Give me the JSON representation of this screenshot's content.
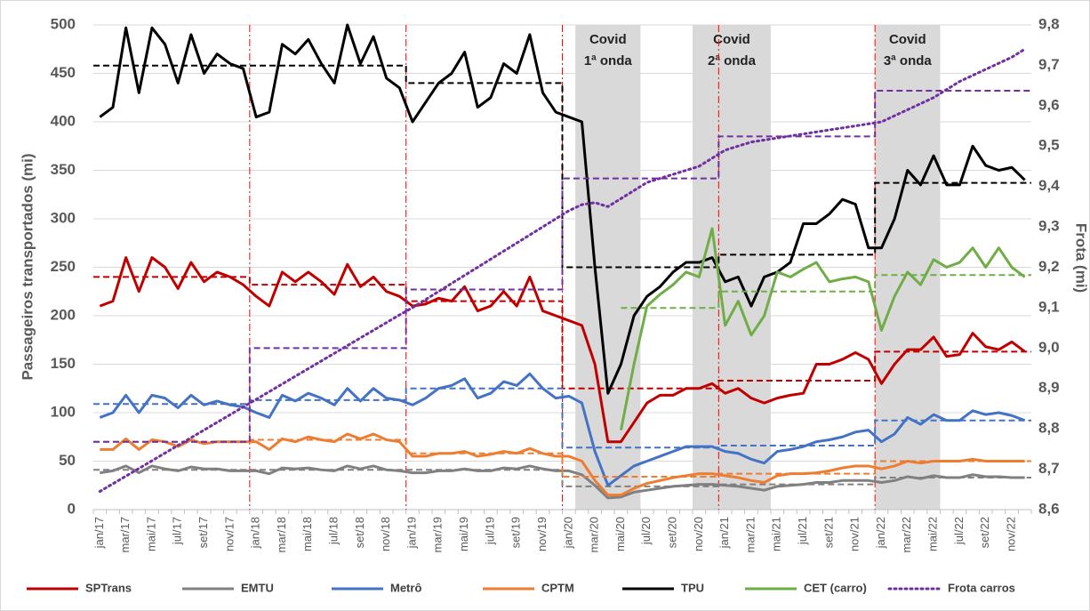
{
  "chart_data": {
    "type": "line",
    "categories": [
      "jan/17",
      null,
      "mar/17",
      null,
      "mai/17",
      null,
      "jul/17",
      null,
      "set/17",
      null,
      "nov/17",
      null,
      "jan/18",
      null,
      "mar/18",
      null,
      "mai/18",
      null,
      "jul/18",
      null,
      "set/18",
      null,
      "nov/18",
      null,
      "jan/19",
      null,
      "mar/19",
      null,
      "mai/19",
      null,
      "jul/19",
      null,
      "set/19",
      null,
      "nov/19",
      null,
      "jan/20",
      null,
      "mar/20",
      null,
      "mai/20",
      null,
      "jul/20",
      null,
      "set/20",
      null,
      "nov/20",
      null,
      "jan/21",
      null,
      "mar/21",
      null,
      "mai/21",
      null,
      "jul/21",
      null,
      "set/21",
      null,
      "nov/21",
      null,
      "jan/22",
      null,
      "mar/22",
      null,
      "mai/22",
      null,
      "jul/22",
      null,
      "set/22",
      null,
      "nov/22",
      null
    ],
    "ylabel": "Passageiros transportados (mi)",
    "y2label": "Frota (mi)",
    "ylim": [
      0,
      500
    ],
    "yticks": [
      0,
      50,
      100,
      150,
      200,
      250,
      300,
      350,
      400,
      450,
      500
    ],
    "y2lim": [
      8.6,
      9.8
    ],
    "y2ticks": [
      {
        "value": 8.6,
        "label": "8,6"
      },
      {
        "value": 8.7,
        "label": "8,7"
      },
      {
        "value": 8.8,
        "label": "8,8"
      },
      {
        "value": 8.9,
        "label": "8,9"
      },
      {
        "value": 9.0,
        "label": "9,0"
      },
      {
        "value": 9.1,
        "label": "9,1"
      },
      {
        "value": 9.2,
        "label": "9,2"
      },
      {
        "value": 9.3,
        "label": "9,3"
      },
      {
        "value": 9.4,
        "label": "9,4"
      },
      {
        "value": 9.5,
        "label": "9,5"
      },
      {
        "value": 9.6,
        "label": "9,6"
      },
      {
        "value": 9.7,
        "label": "9,7"
      },
      {
        "value": 9.8,
        "label": "9,8"
      }
    ],
    "grid": true,
    "legend": "bottom",
    "shaded_ranges": [
      {
        "lines": [
          "Covid",
          "1ª onda"
        ],
        "start": 37,
        "end": 41
      },
      {
        "lines": [
          "Covid",
          "2ª onda"
        ],
        "start": 46,
        "end": 51
      },
      {
        "lines": [
          "Covid",
          "3ª onda"
        ],
        "start": 60,
        "end": 64
      }
    ],
    "series": [
      {
        "name": "SPTrans",
        "color": "#c00000",
        "values": [
          210,
          215,
          260,
          225,
          260,
          250,
          228,
          255,
          235,
          245,
          240,
          232,
          220,
          210,
          245,
          235,
          245,
          235,
          222,
          253,
          230,
          240,
          225,
          220,
          210,
          212,
          218,
          215,
          230,
          205,
          210,
          225,
          210,
          240,
          205,
          200,
          195,
          190,
          150,
          70,
          70,
          90,
          110,
          118,
          118,
          125,
          125,
          130,
          120,
          125,
          115,
          110,
          115,
          118,
          120,
          150,
          150,
          155,
          162,
          155,
          130,
          150,
          165,
          165,
          178,
          158,
          160,
          182,
          168,
          165,
          173,
          163
        ],
        "averages": [
          240,
          232,
          215,
          125,
          133,
          163
        ]
      },
      {
        "name": "EMTU",
        "color": "#808080",
        "values": [
          38,
          40,
          45,
          38,
          45,
          42,
          40,
          44,
          42,
          42,
          40,
          40,
          40,
          37,
          43,
          42,
          43,
          41,
          40,
          45,
          42,
          45,
          41,
          40,
          38,
          38,
          40,
          40,
          42,
          40,
          40,
          43,
          42,
          45,
          42,
          40,
          40,
          36,
          25,
          12,
          13,
          18,
          20,
          22,
          24,
          25,
          26,
          26,
          25,
          24,
          22,
          20,
          24,
          25,
          26,
          28,
          28,
          30,
          30,
          30,
          28,
          30,
          34,
          32,
          35,
          33,
          33,
          36,
          34,
          34,
          33,
          33
        ],
        "averages": [
          41,
          41,
          41,
          24,
          26,
          33
        ]
      },
      {
        "name": "Metrô",
        "color": "#4472c4",
        "values": [
          95,
          100,
          118,
          100,
          118,
          115,
          105,
          118,
          108,
          112,
          108,
          106,
          100,
          95,
          118,
          112,
          120,
          115,
          108,
          125,
          112,
          125,
          115,
          113,
          108,
          115,
          125,
          128,
          135,
          115,
          120,
          132,
          128,
          140,
          125,
          115,
          117,
          110,
          60,
          25,
          35,
          45,
          50,
          55,
          60,
          65,
          65,
          65,
          60,
          58,
          52,
          48,
          60,
          62,
          65,
          70,
          72,
          75,
          80,
          82,
          70,
          78,
          95,
          88,
          98,
          92,
          92,
          102,
          98,
          100,
          97,
          92
        ],
        "averages": [
          109,
          113,
          125,
          64,
          66,
          92
        ]
      },
      {
        "name": "CPTM",
        "color": "#ed7d31",
        "values": [
          62,
          62,
          73,
          62,
          72,
          70,
          65,
          72,
          68,
          70,
          70,
          70,
          70,
          62,
          73,
          70,
          75,
          72,
          70,
          78,
          73,
          78,
          72,
          70,
          55,
          55,
          58,
          58,
          60,
          55,
          57,
          60,
          58,
          63,
          58,
          55,
          55,
          50,
          30,
          15,
          15,
          22,
          27,
          30,
          33,
          35,
          37,
          37,
          35,
          33,
          30,
          28,
          35,
          37,
          37,
          38,
          40,
          43,
          45,
          45,
          42,
          45,
          50,
          48,
          50,
          50,
          50,
          52,
          50,
          50,
          50,
          50
        ],
        "averages": [
          70,
          72,
          58,
          34,
          37,
          50
        ]
      },
      {
        "name": "TPU",
        "color": "#000000",
        "values": [
          405,
          415,
          497,
          430,
          497,
          480,
          440,
          490,
          450,
          470,
          460,
          455,
          405,
          410,
          480,
          470,
          485,
          460,
          440,
          500,
          460,
          488,
          445,
          435,
          400,
          420,
          440,
          450,
          472,
          415,
          425,
          460,
          450,
          490,
          430,
          410,
          405,
          400,
          250,
          120,
          150,
          200,
          220,
          230,
          245,
          255,
          255,
          260,
          235,
          240,
          210,
          240,
          245,
          255,
          295,
          295,
          305,
          320,
          315,
          270,
          270,
          300,
          350,
          335,
          365,
          335,
          335,
          375,
          355,
          350,
          353,
          340
        ],
        "averages": [
          458,
          458,
          440,
          250,
          263,
          337
        ]
      },
      {
        "name": "CET (carro)",
        "color": "#70ad47",
        "values": [
          null,
          null,
          null,
          null,
          null,
          null,
          null,
          null,
          null,
          null,
          null,
          null,
          null,
          null,
          null,
          null,
          null,
          null,
          null,
          null,
          null,
          null,
          null,
          null,
          null,
          null,
          null,
          null,
          null,
          null,
          null,
          null,
          null,
          null,
          null,
          null,
          null,
          null,
          null,
          null,
          82,
          150,
          210,
          222,
          232,
          245,
          240,
          290,
          190,
          215,
          180,
          200,
          245,
          240,
          248,
          255,
          235,
          238,
          240,
          235,
          185,
          220,
          245,
          232,
          258,
          250,
          255,
          270,
          250,
          270,
          250,
          240
        ],
        "averages": [
          null,
          null,
          null,
          208,
          225,
          242
        ]
      },
      {
        "name": "Frota carros",
        "color": "#7030a0",
        "axis": "y2",
        "dash": "dotted",
        "values": [
          8.645,
          8.664,
          8.683,
          8.702,
          8.721,
          8.74,
          8.759,
          8.778,
          8.797,
          8.816,
          8.835,
          8.854,
          8.873,
          8.892,
          8.911,
          8.93,
          8.949,
          8.968,
          8.987,
          9.006,
          9.025,
          9.044,
          9.063,
          9.082,
          9.1,
          9.12,
          9.14,
          9.16,
          9.18,
          9.2,
          9.22,
          9.24,
          9.26,
          9.28,
          9.3,
          9.32,
          9.34,
          9.355,
          9.36,
          9.35,
          9.37,
          9.39,
          9.41,
          9.42,
          9.43,
          9.44,
          9.45,
          9.47,
          9.49,
          9.5,
          9.51,
          9.515,
          9.52,
          9.525,
          9.53,
          9.535,
          9.54,
          9.545,
          9.55,
          9.555,
          9.56,
          9.575,
          9.59,
          9.605,
          9.62,
          9.64,
          9.66,
          9.675,
          9.69,
          9.705,
          9.72,
          9.74
        ],
        "averages": [
          8.768,
          9.0,
          9.145,
          9.42,
          9.524,
          9.637
        ]
      }
    ]
  }
}
